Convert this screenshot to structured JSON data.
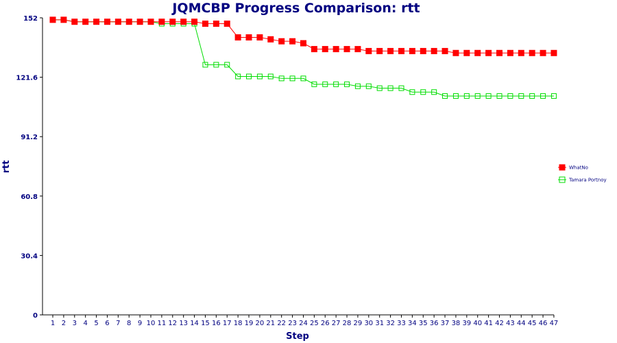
{
  "chart_data": {
    "type": "line",
    "title": "JQMCBP Progress Comparison: rtt",
    "xlabel": "Step",
    "ylabel": "rtt",
    "ylim": [
      0,
      152
    ],
    "yticks": [
      "0",
      "30.4",
      "60.8",
      "91.2",
      "121.6",
      "152"
    ],
    "x": [
      1,
      2,
      3,
      4,
      5,
      6,
      7,
      8,
      9,
      10,
      11,
      12,
      13,
      14,
      15,
      16,
      17,
      18,
      19,
      20,
      21,
      22,
      23,
      24,
      25,
      26,
      27,
      28,
      29,
      30,
      31,
      32,
      33,
      34,
      35,
      36,
      37,
      38,
      39,
      40,
      41,
      42,
      43,
      44,
      45,
      46,
      47
    ],
    "grid": false,
    "legend_position": "right",
    "series": [
      {
        "name": "WhatNo",
        "color": "#ff0000",
        "marker": "filled-square",
        "values": [
          151,
          151,
          150,
          150,
          150,
          150,
          150,
          150,
          150,
          150,
          150,
          150,
          150,
          150,
          149,
          149,
          149,
          142,
          142,
          142,
          141,
          140,
          140,
          139,
          136,
          136,
          136,
          136,
          136,
          135,
          135,
          135,
          135,
          135,
          135,
          135,
          135,
          134,
          134,
          134,
          134,
          134,
          134,
          134,
          134,
          134,
          134
        ]
      },
      {
        "name": "Tamara Portnoy",
        "color": "#00dd00",
        "marker": "open-square",
        "values": [
          151,
          151,
          150,
          150,
          150,
          150,
          150,
          150,
          150,
          150,
          149,
          149,
          149,
          149,
          128,
          128,
          128,
          122,
          122,
          122,
          122,
          121,
          121,
          121,
          118,
          118,
          118,
          118,
          117,
          117,
          116,
          116,
          116,
          114,
          114,
          114,
          112,
          112,
          112,
          112,
          112,
          112,
          112,
          112,
          112,
          112,
          112
        ]
      }
    ]
  }
}
